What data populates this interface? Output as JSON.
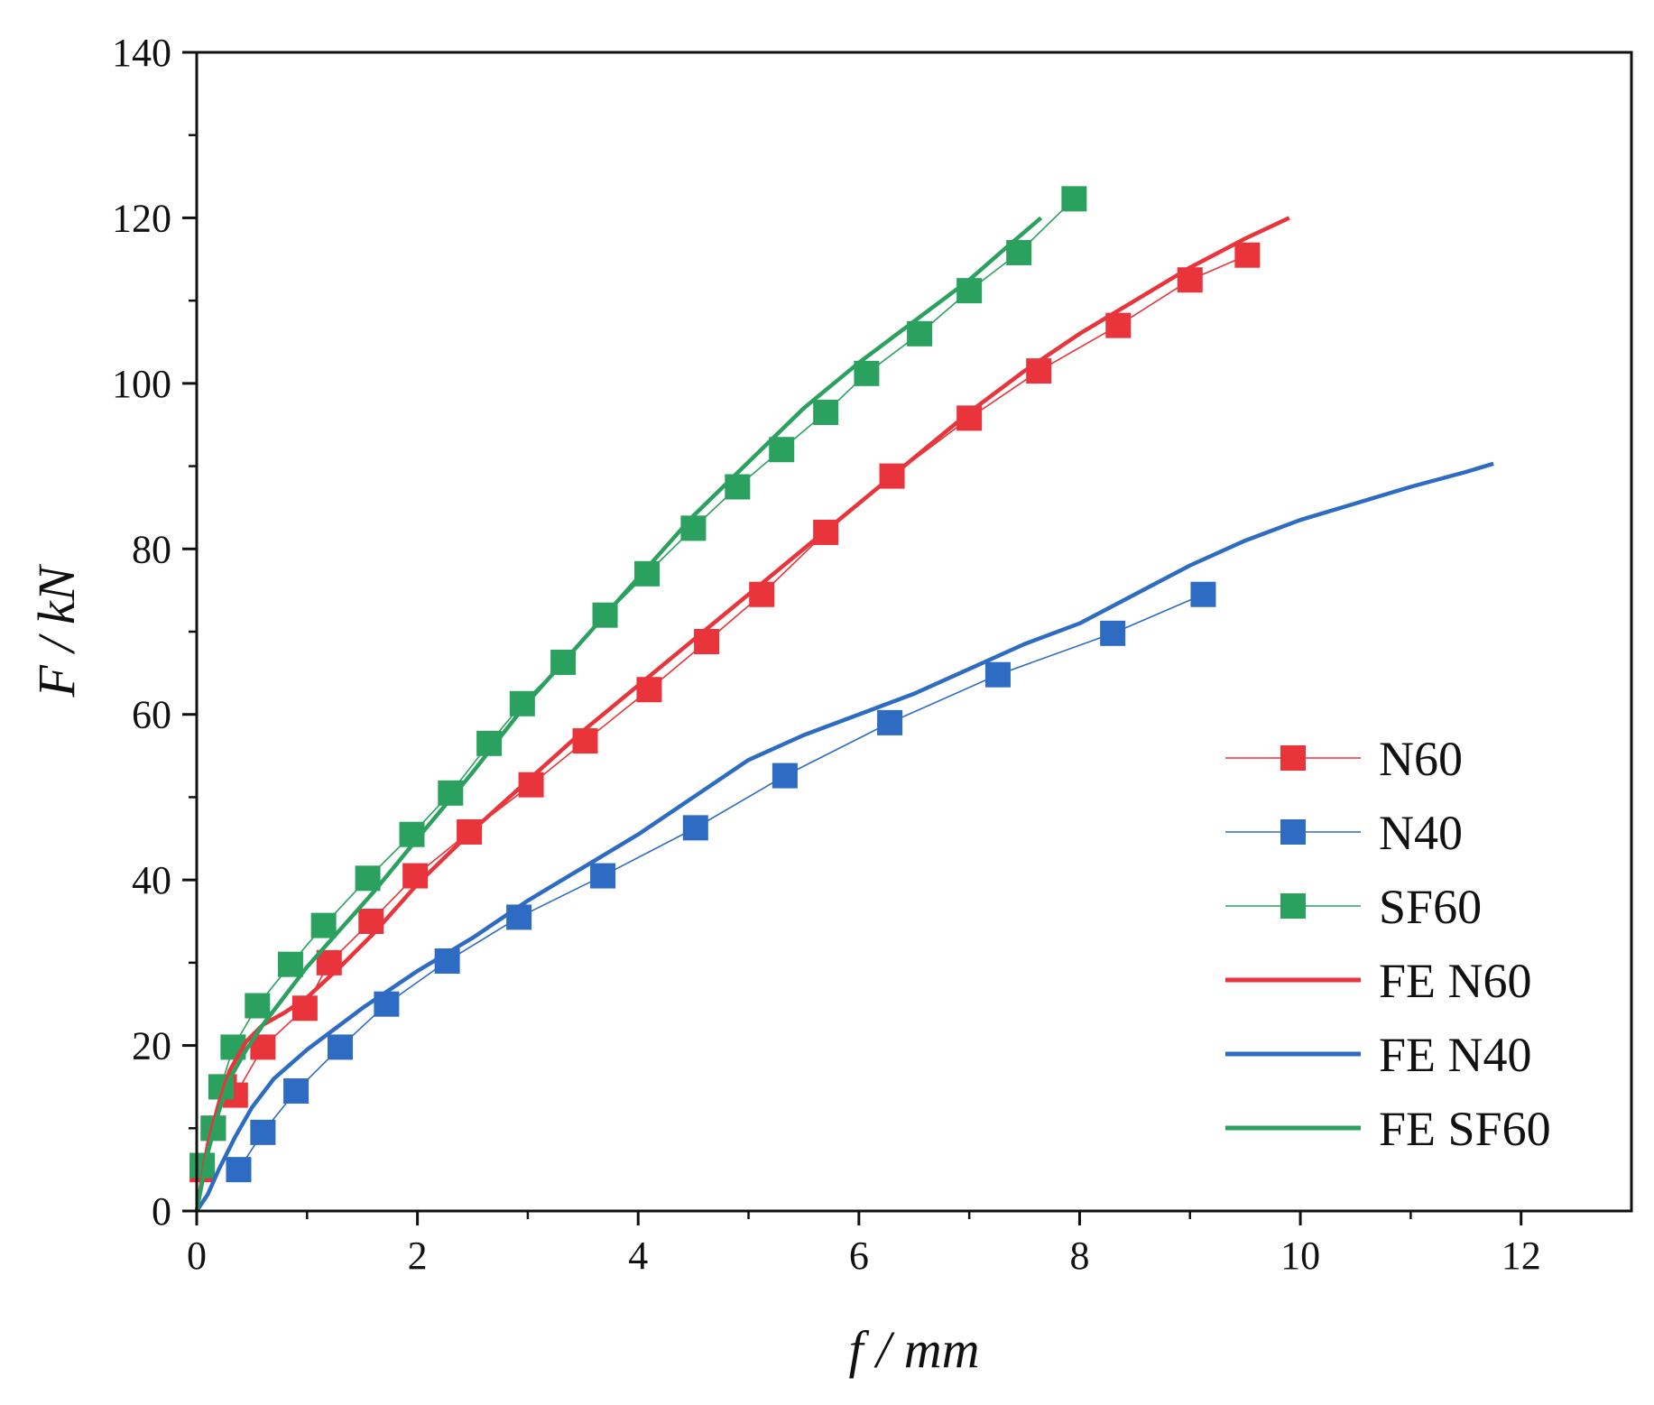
{
  "chart_data": {
    "type": "line",
    "title": "",
    "xlabel": "f / mm",
    "ylabel": "F / kN",
    "xlim": [
      0,
      13
    ],
    "ylim": [
      0,
      140
    ],
    "x_ticks": [
      0,
      2,
      4,
      6,
      8,
      10,
      12
    ],
    "y_ticks": [
      0,
      20,
      40,
      60,
      80,
      100,
      120,
      140
    ],
    "grid": false,
    "legend_position": "bottom-right",
    "series": [
      {
        "name": "N60",
        "kind": "markers",
        "color": "#e8343a",
        "points": [
          [
            0.05,
            5
          ],
          [
            0.15,
            10
          ],
          [
            0.25,
            15
          ],
          [
            0.35,
            14
          ],
          [
            0.6,
            19.8
          ],
          [
            0.98,
            24.5
          ],
          [
            1.2,
            30
          ],
          [
            1.58,
            35
          ],
          [
            1.98,
            40.5
          ],
          [
            2.47,
            45.8
          ],
          [
            3.03,
            51.5
          ],
          [
            3.52,
            56.8
          ],
          [
            4.1,
            63
          ],
          [
            4.62,
            68.8
          ],
          [
            5.12,
            74.5
          ],
          [
            5.7,
            82
          ],
          [
            6.3,
            88.8
          ],
          [
            7.0,
            95.8
          ],
          [
            7.63,
            101.5
          ],
          [
            8.35,
            107
          ],
          [
            9.0,
            112.5
          ],
          [
            9.52,
            115.5
          ]
        ]
      },
      {
        "name": "N40",
        "kind": "markers",
        "color": "#2e6cc4",
        "points": [
          [
            0.38,
            5
          ],
          [
            0.6,
            9.5
          ],
          [
            0.9,
            14.5
          ],
          [
            1.3,
            19.8
          ],
          [
            1.72,
            25
          ],
          [
            2.27,
            30.2
          ],
          [
            2.92,
            35.5
          ],
          [
            3.68,
            40.5
          ],
          [
            4.52,
            46.3
          ],
          [
            5.33,
            52.6
          ],
          [
            6.28,
            59
          ],
          [
            7.26,
            64.8
          ],
          [
            8.3,
            69.8
          ],
          [
            9.12,
            74.5
          ]
        ]
      },
      {
        "name": "SF60",
        "kind": "markers",
        "color": "#2ba160",
        "points": [
          [
            0.05,
            5.5
          ],
          [
            0.15,
            10
          ],
          [
            0.22,
            15
          ],
          [
            0.33,
            19.8
          ],
          [
            0.55,
            24.8
          ],
          [
            0.85,
            29.8
          ],
          [
            1.15,
            34.5
          ],
          [
            1.55,
            40.2
          ],
          [
            1.95,
            45.5
          ],
          [
            2.3,
            50.5
          ],
          [
            2.65,
            56.5
          ],
          [
            2.95,
            61.3
          ],
          [
            3.32,
            66.3
          ],
          [
            3.7,
            72
          ],
          [
            4.08,
            77
          ],
          [
            4.5,
            82.5
          ],
          [
            4.9,
            87.5
          ],
          [
            5.3,
            92
          ],
          [
            5.7,
            96.5
          ],
          [
            6.07,
            101.2
          ],
          [
            6.55,
            106
          ],
          [
            7.0,
            111.2
          ],
          [
            7.45,
            115.8
          ],
          [
            7.95,
            122.3
          ]
        ]
      },
      {
        "name": "FE N60",
        "kind": "line",
        "color": "#e8343a",
        "points": [
          [
            0,
            0
          ],
          [
            0.1,
            8
          ],
          [
            0.2,
            13
          ],
          [
            0.3,
            17
          ],
          [
            0.45,
            20.5
          ],
          [
            0.6,
            22.5
          ],
          [
            0.8,
            24
          ],
          [
            1.0,
            25.8
          ],
          [
            1.3,
            29.5
          ],
          [
            1.6,
            33.5
          ],
          [
            2.0,
            39.5
          ],
          [
            2.5,
            46
          ],
          [
            3.0,
            52
          ],
          [
            3.5,
            58
          ],
          [
            4.0,
            63.5
          ],
          [
            4.5,
            69
          ],
          [
            5.0,
            74.5
          ],
          [
            5.5,
            80
          ],
          [
            6.0,
            85.5
          ],
          [
            6.5,
            91
          ],
          [
            7.0,
            96.5
          ],
          [
            7.5,
            101.5
          ],
          [
            8.0,
            106
          ],
          [
            8.5,
            110
          ],
          [
            9.0,
            114
          ],
          [
            9.5,
            117.5
          ],
          [
            9.9,
            120
          ]
        ]
      },
      {
        "name": "FE N40",
        "kind": "line",
        "color": "#2e6cc4",
        "points": [
          [
            0,
            0
          ],
          [
            0.1,
            2
          ],
          [
            0.2,
            5
          ],
          [
            0.35,
            9
          ],
          [
            0.5,
            12.5
          ],
          [
            0.7,
            16
          ],
          [
            1.0,
            19.5
          ],
          [
            1.5,
            24.5
          ],
          [
            2.0,
            29
          ],
          [
            2.5,
            33
          ],
          [
            3.0,
            37.5
          ],
          [
            3.5,
            41.5
          ],
          [
            4.0,
            45.5
          ],
          [
            4.5,
            50
          ],
          [
            5.0,
            54.5
          ],
          [
            5.5,
            57.5
          ],
          [
            6.0,
            60
          ],
          [
            6.5,
            62.5
          ],
          [
            7.0,
            65.5
          ],
          [
            7.5,
            68.5
          ],
          [
            8.0,
            71
          ],
          [
            8.5,
            74.5
          ],
          [
            9.0,
            78
          ],
          [
            9.5,
            81
          ],
          [
            10.0,
            83.5
          ],
          [
            10.5,
            85.5
          ],
          [
            11.0,
            87.5
          ],
          [
            11.5,
            89.3
          ],
          [
            11.75,
            90.3
          ]
        ]
      },
      {
        "name": "FE SF60",
        "kind": "line",
        "color": "#2ba160",
        "points": [
          [
            0,
            0
          ],
          [
            0.1,
            7
          ],
          [
            0.2,
            12
          ],
          [
            0.3,
            16
          ],
          [
            0.45,
            19.5
          ],
          [
            0.6,
            22.5
          ],
          [
            0.8,
            26
          ],
          [
            1.0,
            29.5
          ],
          [
            1.3,
            34
          ],
          [
            1.6,
            38.5
          ],
          [
            2.0,
            45
          ],
          [
            2.5,
            53
          ],
          [
            3.0,
            61.5
          ],
          [
            3.5,
            69
          ],
          [
            4.0,
            76.5
          ],
          [
            4.5,
            84
          ],
          [
            5.0,
            90.5
          ],
          [
            5.5,
            97
          ],
          [
            6.0,
            102.5
          ],
          [
            6.5,
            107.5
          ],
          [
            7.0,
            112.5
          ],
          [
            7.3,
            116
          ],
          [
            7.65,
            120
          ]
        ]
      }
    ]
  }
}
